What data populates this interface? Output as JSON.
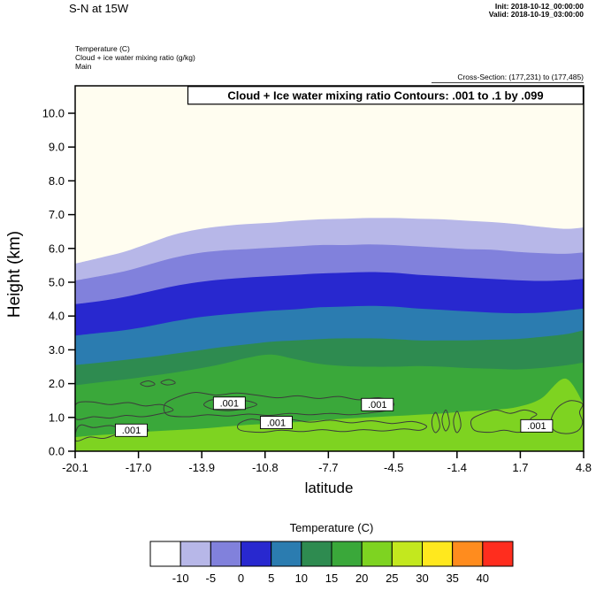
{
  "header": {
    "plot_title": "S-N at 15W",
    "init_line": "Init: 2018-10-12_00:00:00",
    "valid_line": "Valid: 2018-10-19_03:00:00",
    "legend_lines": [
      "Temperature   (C)",
      "Cloud + ice water mixing ratio   (g/kg)",
      "Main"
    ],
    "cross_section_line": "Cross-Section: (177,231) to (177,485)"
  },
  "chart_data": {
    "type": "filled-contour-cross-section",
    "title": "Cloud + Ice water mixing ratio Contours: .001 to .1 by .099",
    "xlabel": "latitude",
    "ylabel": "Height (km)",
    "xlim": [
      -20.1,
      4.8
    ],
    "ylim": [
      0,
      10.8
    ],
    "grid": false,
    "background_fill": "#fffdf0",
    "x_ticks": [
      -20.1,
      -17.0,
      -13.9,
      -10.8,
      -7.7,
      -4.5,
      -1.4,
      1.7,
      4.8
    ],
    "x_tick_labels": [
      "-20.1",
      "-17.0",
      "-13.9",
      "-10.8",
      "-7.7",
      "-4.5",
      "-1.4",
      "1.7",
      "4.8"
    ],
    "y_ticks": [
      0,
      1,
      2,
      3,
      4,
      5,
      6,
      7,
      8,
      9,
      10
    ],
    "y_tick_labels": [
      "0.0",
      "1.0",
      "2.0",
      "3.0",
      "4.0",
      "5.0",
      "6.0",
      "7.0",
      "8.0",
      "9.0",
      "10.0"
    ],
    "lats": [
      -20.1,
      -18.9,
      -17.7,
      -16.5,
      -15.3,
      -14.1,
      -12.9,
      -11.7,
      -10.5,
      -9.3,
      -8.1,
      -6.9,
      -5.7,
      -4.5,
      -3.3,
      -2.1,
      -0.9,
      0.3,
      1.5,
      2.7,
      3.9,
      4.8
    ],
    "temperature_isotherms": [
      {
        "temp_c": -10,
        "fill_below": "#b7b7e8",
        "heights_km": [
          5.55,
          5.72,
          5.9,
          6.15,
          6.4,
          6.56,
          6.66,
          6.72,
          6.76,
          6.82,
          6.86,
          6.88,
          6.9,
          6.9,
          6.88,
          6.86,
          6.82,
          6.78,
          6.72,
          6.64,
          6.58,
          6.62
        ]
      },
      {
        "temp_c": -5,
        "fill_below": "#8181dc",
        "heights_km": [
          5.05,
          5.18,
          5.32,
          5.52,
          5.72,
          5.86,
          5.94,
          5.98,
          6.02,
          6.06,
          6.1,
          6.1,
          6.12,
          6.1,
          6.06,
          6.02,
          5.98,
          5.96,
          5.9,
          5.86,
          5.84,
          5.88
        ]
      },
      {
        "temp_c": 0,
        "fill_below": "#2828cf",
        "heights_km": [
          4.35,
          4.44,
          4.56,
          4.72,
          4.88,
          5.0,
          5.08,
          5.14,
          5.18,
          5.22,
          5.26,
          5.28,
          5.3,
          5.28,
          5.22,
          5.18,
          5.14,
          5.1,
          5.06,
          5.04,
          5.06,
          5.1
        ]
      },
      {
        "temp_c": 5,
        "fill_below": "#2b7cb0",
        "heights_km": [
          3.42,
          3.5,
          3.58,
          3.7,
          3.84,
          3.96,
          4.04,
          4.1,
          4.16,
          4.2,
          4.26,
          4.28,
          4.3,
          4.28,
          4.22,
          4.18,
          4.14,
          4.1,
          4.08,
          4.1,
          4.16,
          4.22
        ]
      },
      {
        "temp_c": 10,
        "fill_below": "#2e8b50",
        "heights_km": [
          2.55,
          2.62,
          2.7,
          2.78,
          2.88,
          2.98,
          3.08,
          3.16,
          3.24,
          3.28,
          3.32,
          3.34,
          3.34,
          3.32,
          3.28,
          3.28,
          3.28,
          3.3,
          3.32,
          3.38,
          3.46,
          3.58
        ]
      },
      {
        "temp_c": 15,
        "fill_below": "#3aa83a",
        "heights_km": [
          1.95,
          2.04,
          2.12,
          2.22,
          2.32,
          2.44,
          2.58,
          2.76,
          2.86,
          2.72,
          2.58,
          2.52,
          2.5,
          2.5,
          2.52,
          2.5,
          2.46,
          2.44,
          2.42,
          2.46,
          2.54,
          2.62
        ]
      },
      {
        "temp_c": 20,
        "fill_below": "#7ed321",
        "heights_km": [
          0.42,
          0.48,
          0.52,
          0.58,
          0.62,
          0.66,
          0.72,
          0.78,
          0.82,
          0.86,
          0.92,
          0.96,
          1.0,
          1.04,
          1.08,
          1.12,
          1.18,
          1.22,
          1.3,
          1.55,
          2.15,
          1.4
        ]
      }
    ],
    "cloud_contours": {
      "levels": [
        0.001,
        0.1
      ],
      "line_color": "#3c3c3c",
      "paths": [
        {
          "level": 0.001,
          "points": [
            [
              -20.05,
              0.3
            ],
            [
              -19.4,
              0.42
            ],
            [
              -18.7,
              0.38
            ],
            [
              -18.0,
              0.5
            ],
            [
              -17.4,
              0.44
            ],
            [
              -16.9,
              0.52
            ],
            [
              -16.5,
              0.62
            ],
            [
              -17.0,
              0.72
            ],
            [
              -17.7,
              0.66
            ],
            [
              -18.4,
              0.76
            ],
            [
              -19.2,
              0.7
            ],
            [
              -19.8,
              0.78
            ],
            [
              -20.05,
              0.62
            ]
          ]
        },
        {
          "level": 0.001,
          "points": [
            [
              -20.05,
              0.95
            ],
            [
              -19.2,
              1.02
            ],
            [
              -18.4,
              0.98
            ],
            [
              -17.6,
              1.06
            ],
            [
              -16.8,
              1.02
            ],
            [
              -16.0,
              1.1
            ],
            [
              -15.3,
              1.22
            ],
            [
              -15.9,
              1.38
            ],
            [
              -16.7,
              1.34
            ],
            [
              -17.5,
              1.44
            ],
            [
              -18.4,
              1.38
            ],
            [
              -19.3,
              1.46
            ],
            [
              -20.05,
              1.4
            ]
          ]
        },
        {
          "level": 0.001,
          "points": [
            [
              -15.6,
              1.08
            ],
            [
              -14.6,
              1.02
            ],
            [
              -13.6,
              1.08
            ],
            [
              -12.6,
              1.04
            ],
            [
              -11.6,
              1.1
            ],
            [
              -10.6,
              1.06
            ],
            [
              -9.6,
              1.12
            ],
            [
              -8.6,
              1.08
            ],
            [
              -7.6,
              1.12
            ],
            [
              -6.6,
              1.08
            ],
            [
              -5.6,
              1.14
            ],
            [
              -4.8,
              1.22
            ],
            [
              -4.5,
              1.42
            ],
            [
              -5.2,
              1.58
            ],
            [
              -6.2,
              1.52
            ],
            [
              -7.2,
              1.62
            ],
            [
              -8.2,
              1.56
            ],
            [
              -9.2,
              1.64
            ],
            [
              -10.2,
              1.58
            ],
            [
              -11.2,
              1.66
            ],
            [
              -12.2,
              1.72
            ],
            [
              -13.2,
              1.66
            ],
            [
              -14.2,
              1.74
            ],
            [
              -15.0,
              1.62
            ],
            [
              -15.7,
              1.4
            ]
          ]
        },
        {
          "level": 0.1,
          "points": [
            [
              -13.4,
              1.25
            ],
            [
              -12.6,
              1.2
            ],
            [
              -11.8,
              1.26
            ],
            [
              -11.2,
              1.38
            ],
            [
              -11.8,
              1.5
            ],
            [
              -12.7,
              1.46
            ],
            [
              -13.4,
              1.52
            ],
            [
              -13.8,
              1.38
            ]
          ]
        },
        {
          "level": 0.1,
          "points": [
            [
              -5.6,
              1.25
            ],
            [
              -5.0,
              1.22
            ],
            [
              -4.6,
              1.35
            ],
            [
              -5.0,
              1.48
            ],
            [
              -5.7,
              1.44
            ],
            [
              -5.9,
              1.34
            ]
          ]
        },
        {
          "level": 0.001,
          "points": [
            [
              -12.0,
              0.62
            ],
            [
              -11.0,
              0.56
            ],
            [
              -10.0,
              0.62
            ],
            [
              -9.0,
              0.58
            ],
            [
              -8.0,
              0.64
            ],
            [
              -7.0,
              0.58
            ],
            [
              -6.0,
              0.64
            ],
            [
              -5.0,
              0.6
            ],
            [
              -4.0,
              0.66
            ],
            [
              -3.2,
              0.62
            ],
            [
              -2.9,
              0.75
            ],
            [
              -3.6,
              0.88
            ],
            [
              -4.6,
              0.82
            ],
            [
              -5.6,
              0.9
            ],
            [
              -6.6,
              0.84
            ],
            [
              -7.6,
              0.92
            ],
            [
              -8.6,
              0.86
            ],
            [
              -9.6,
              0.94
            ],
            [
              -10.6,
              0.88
            ],
            [
              -11.5,
              0.95
            ],
            [
              -12.1,
              0.8
            ]
          ]
        },
        {
          "level": 0.001,
          "points": [
            [
              -2.45,
              0.55
            ],
            [
              -2.25,
              0.7
            ],
            [
              -2.3,
              0.95
            ],
            [
              -2.45,
              1.15
            ],
            [
              -2.62,
              0.95
            ],
            [
              -2.6,
              0.7
            ]
          ]
        },
        {
          "level": 0.001,
          "points": [
            [
              -1.95,
              0.6
            ],
            [
              -1.78,
              0.78
            ],
            [
              -1.82,
              1.02
            ],
            [
              -1.95,
              1.22
            ],
            [
              -2.12,
              1.0
            ],
            [
              -2.1,
              0.78
            ]
          ]
        },
        {
          "level": 0.001,
          "points": [
            [
              -1.4,
              0.55
            ],
            [
              -1.22,
              0.72
            ],
            [
              -1.26,
              0.98
            ],
            [
              -1.4,
              1.18
            ],
            [
              -1.56,
              0.96
            ],
            [
              -1.54,
              0.72
            ]
          ]
        },
        {
          "level": 0.001,
          "points": [
            [
              -0.55,
              0.62
            ],
            [
              0.2,
              0.56
            ],
            [
              0.9,
              0.62
            ],
            [
              1.6,
              0.56
            ],
            [
              2.3,
              0.64
            ],
            [
              2.6,
              0.8
            ],
            [
              2.2,
              0.95
            ],
            [
              2.5,
              1.1
            ],
            [
              1.9,
              1.22
            ],
            [
              1.2,
              1.12
            ],
            [
              0.5,
              1.22
            ],
            [
              -0.2,
              1.1
            ],
            [
              -0.7,
              0.92
            ]
          ]
        },
        {
          "level": 0.001,
          "points": [
            [
              3.35,
              0.62
            ],
            [
              3.9,
              0.52
            ],
            [
              4.5,
              0.6
            ],
            [
              4.75,
              0.85
            ],
            [
              4.6,
              1.15
            ],
            [
              4.75,
              1.4
            ],
            [
              4.2,
              1.5
            ],
            [
              3.7,
              1.38
            ],
            [
              3.35,
              1.15
            ],
            [
              3.2,
              0.88
            ]
          ]
        },
        {
          "level": 0.001,
          "points": [
            [
              -16.6,
              1.92
            ],
            [
              -16.2,
              1.98
            ],
            [
              -16.5,
              2.08
            ],
            [
              -16.9,
              2.0
            ]
          ]
        },
        {
          "level": 0.001,
          "points": [
            [
              -15.6,
              1.96
            ],
            [
              -15.2,
              2.02
            ],
            [
              -15.5,
              2.12
            ],
            [
              -15.9,
              2.04
            ]
          ]
        }
      ],
      "labels": [
        {
          "text": ".001",
          "lat": -17.35,
          "km": 0.62
        },
        {
          "text": ".001",
          "lat": -12.55,
          "km": 1.42
        },
        {
          "text": ".001",
          "lat": -10.25,
          "km": 0.85
        },
        {
          "text": ".001",
          "lat": -5.3,
          "km": 1.38
        },
        {
          "text": ".001",
          "lat": 2.5,
          "km": 0.75
        }
      ]
    },
    "colorbar": {
      "title": "Temperature  (C)",
      "colors": [
        "#ffffff",
        "#b7b7e8",
        "#8181dc",
        "#2828cf",
        "#2b7cb0",
        "#2e8b50",
        "#3aa83a",
        "#7ed321",
        "#c3e81e",
        "#ffe81e",
        "#ff8c1e",
        "#ff2d1e"
      ],
      "tick_labels": [
        "-10",
        "-5",
        "0",
        "5",
        "10",
        "15",
        "20",
        "25",
        "30",
        "35",
        "40"
      ]
    }
  }
}
